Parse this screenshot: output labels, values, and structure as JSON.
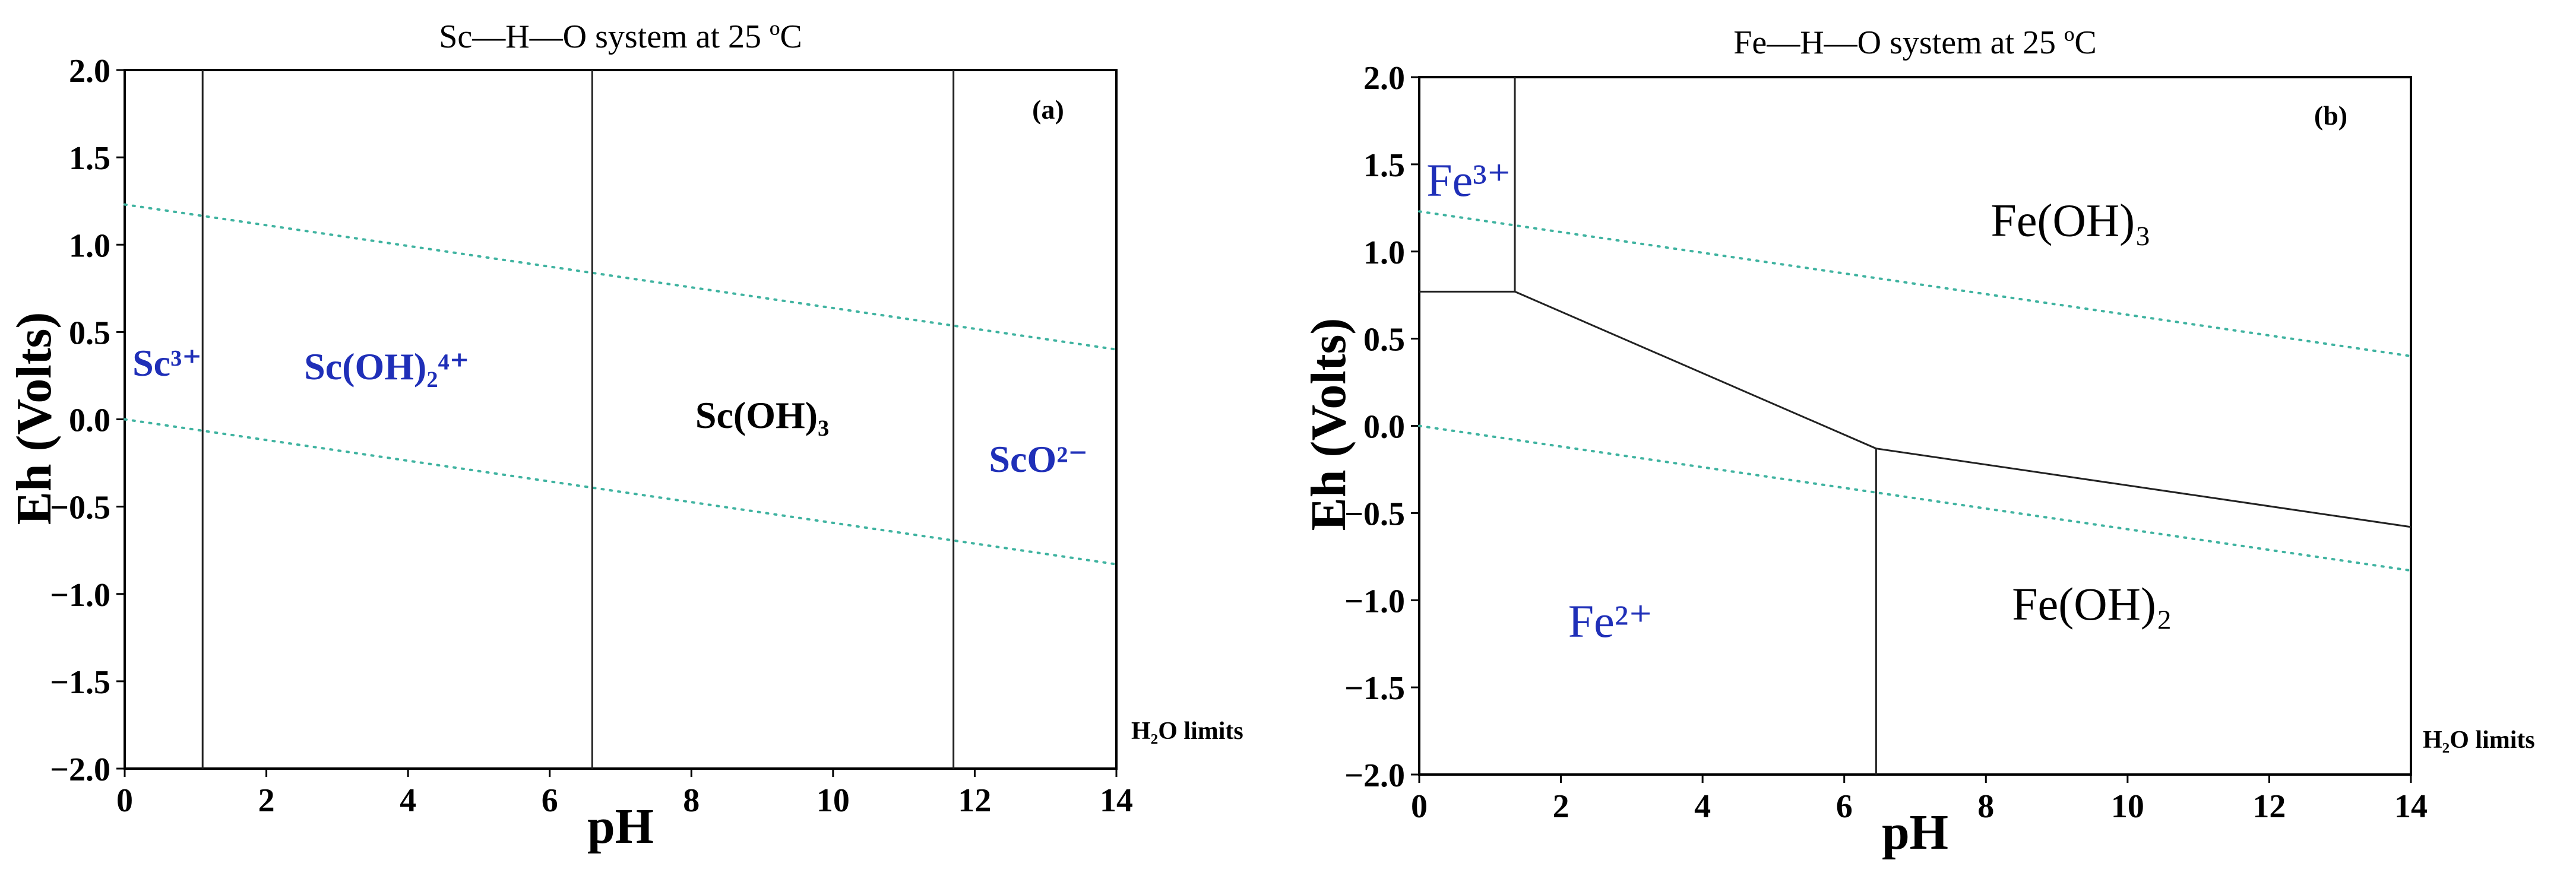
{
  "chart_data": [
    {
      "type": "pourbaix-diagram",
      "panel": "(a)",
      "title": "Sc—H—O system at 25 ºC",
      "xlabel": "pH",
      "ylabel": "Eh (Volts)",
      "xlim": [
        0,
        14
      ],
      "ylim": [
        -2.0,
        2.0
      ],
      "x_ticks": [
        "0",
        "2",
        "4",
        "6",
        "8",
        "10",
        "12",
        "14"
      ],
      "y_ticks": [
        "2.0",
        "1.5",
        "1.0",
        "0.5",
        "0.0",
        "−0.5",
        "−1.0",
        "−1.5",
        "−2.0"
      ],
      "water_limit_label": "H₂O limits",
      "water_limits": [
        {
          "name": "upper",
          "pH": [
            0,
            14
          ],
          "Eh": [
            1.23,
            0.4
          ]
        },
        {
          "name": "lower",
          "pH": [
            0,
            14
          ],
          "Eh": [
            0.0,
            -0.83
          ]
        }
      ],
      "boundaries": [
        {
          "pH": [
            1.1,
            1.1
          ],
          "Eh": [
            -2.0,
            2.0
          ]
        },
        {
          "pH": [
            6.6,
            6.6
          ],
          "Eh": [
            -2.0,
            2.0
          ]
        },
        {
          "pH": [
            11.7,
            11.7
          ],
          "Eh": [
            -2.0,
            2.0
          ]
        }
      ],
      "regions": [
        {
          "label": "Sc³⁺",
          "pH": 0.6,
          "Eh": 0.3,
          "color": "#1f2fb8",
          "bold": true
        },
        {
          "label": "Sc(OH)₂⁴⁺",
          "pH": 3.7,
          "Eh": 0.28,
          "color": "#1f2fb8",
          "bold": true
        },
        {
          "label": "Sc(OH)₃",
          "pH": 9.0,
          "Eh": 0.0,
          "color": "#000000",
          "bold": true
        },
        {
          "label": "ScO²⁻",
          "pH": 12.9,
          "Eh": -0.25,
          "color": "#1f2fb8",
          "bold": true
        }
      ]
    },
    {
      "type": "pourbaix-diagram",
      "panel": "(b)",
      "title": "Fe—H—O system at 25 ºC",
      "xlabel": "pH",
      "ylabel": "Eh (Volts)",
      "xlim": [
        0,
        14
      ],
      "ylim": [
        -2.0,
        2.0
      ],
      "x_ticks": [
        "0",
        "2",
        "4",
        "6",
        "8",
        "10",
        "12",
        "14"
      ],
      "y_ticks": [
        "2.0",
        "1.5",
        "1.0",
        "0.5",
        "0.0",
        "−0.5",
        "−1.0",
        "−1.5",
        "−2.0"
      ],
      "water_limit_label": "H₂O limits",
      "water_limits": [
        {
          "name": "upper",
          "pH": [
            0,
            14
          ],
          "Eh": [
            1.23,
            0.4
          ]
        },
        {
          "name": "lower",
          "pH": [
            0,
            14
          ],
          "Eh": [
            0.0,
            -0.83
          ]
        }
      ],
      "boundaries": [
        {
          "pH": [
            0,
            1.35
          ],
          "Eh": [
            0.77,
            0.77
          ]
        },
        {
          "pH": [
            1.35,
            1.35
          ],
          "Eh": [
            0.77,
            2.0
          ]
        },
        {
          "pH": [
            1.35,
            6.45
          ],
          "Eh": [
            0.77,
            -0.13
          ]
        },
        {
          "pH": [
            6.45,
            14
          ],
          "Eh": [
            -0.13,
            -0.58
          ]
        },
        {
          "pH": [
            6.45,
            6.45
          ],
          "Eh": [
            -2.0,
            -0.13
          ]
        }
      ],
      "regions": [
        {
          "label": "Fe³⁺",
          "pH": 0.7,
          "Eh": 1.38,
          "color": "#1f2fb8",
          "bold": false
        },
        {
          "label": "Fe(OH)₃",
          "pH": 9.2,
          "Eh": 1.15,
          "color": "#000000",
          "bold": false
        },
        {
          "label": "Fe²⁺",
          "pH": 2.7,
          "Eh": -1.15,
          "color": "#1f2fb8",
          "bold": false
        },
        {
          "label": "Fe(OH)₂",
          "pH": 9.5,
          "Eh": -1.05,
          "color": "#000000",
          "bold": false
        }
      ]
    }
  ]
}
